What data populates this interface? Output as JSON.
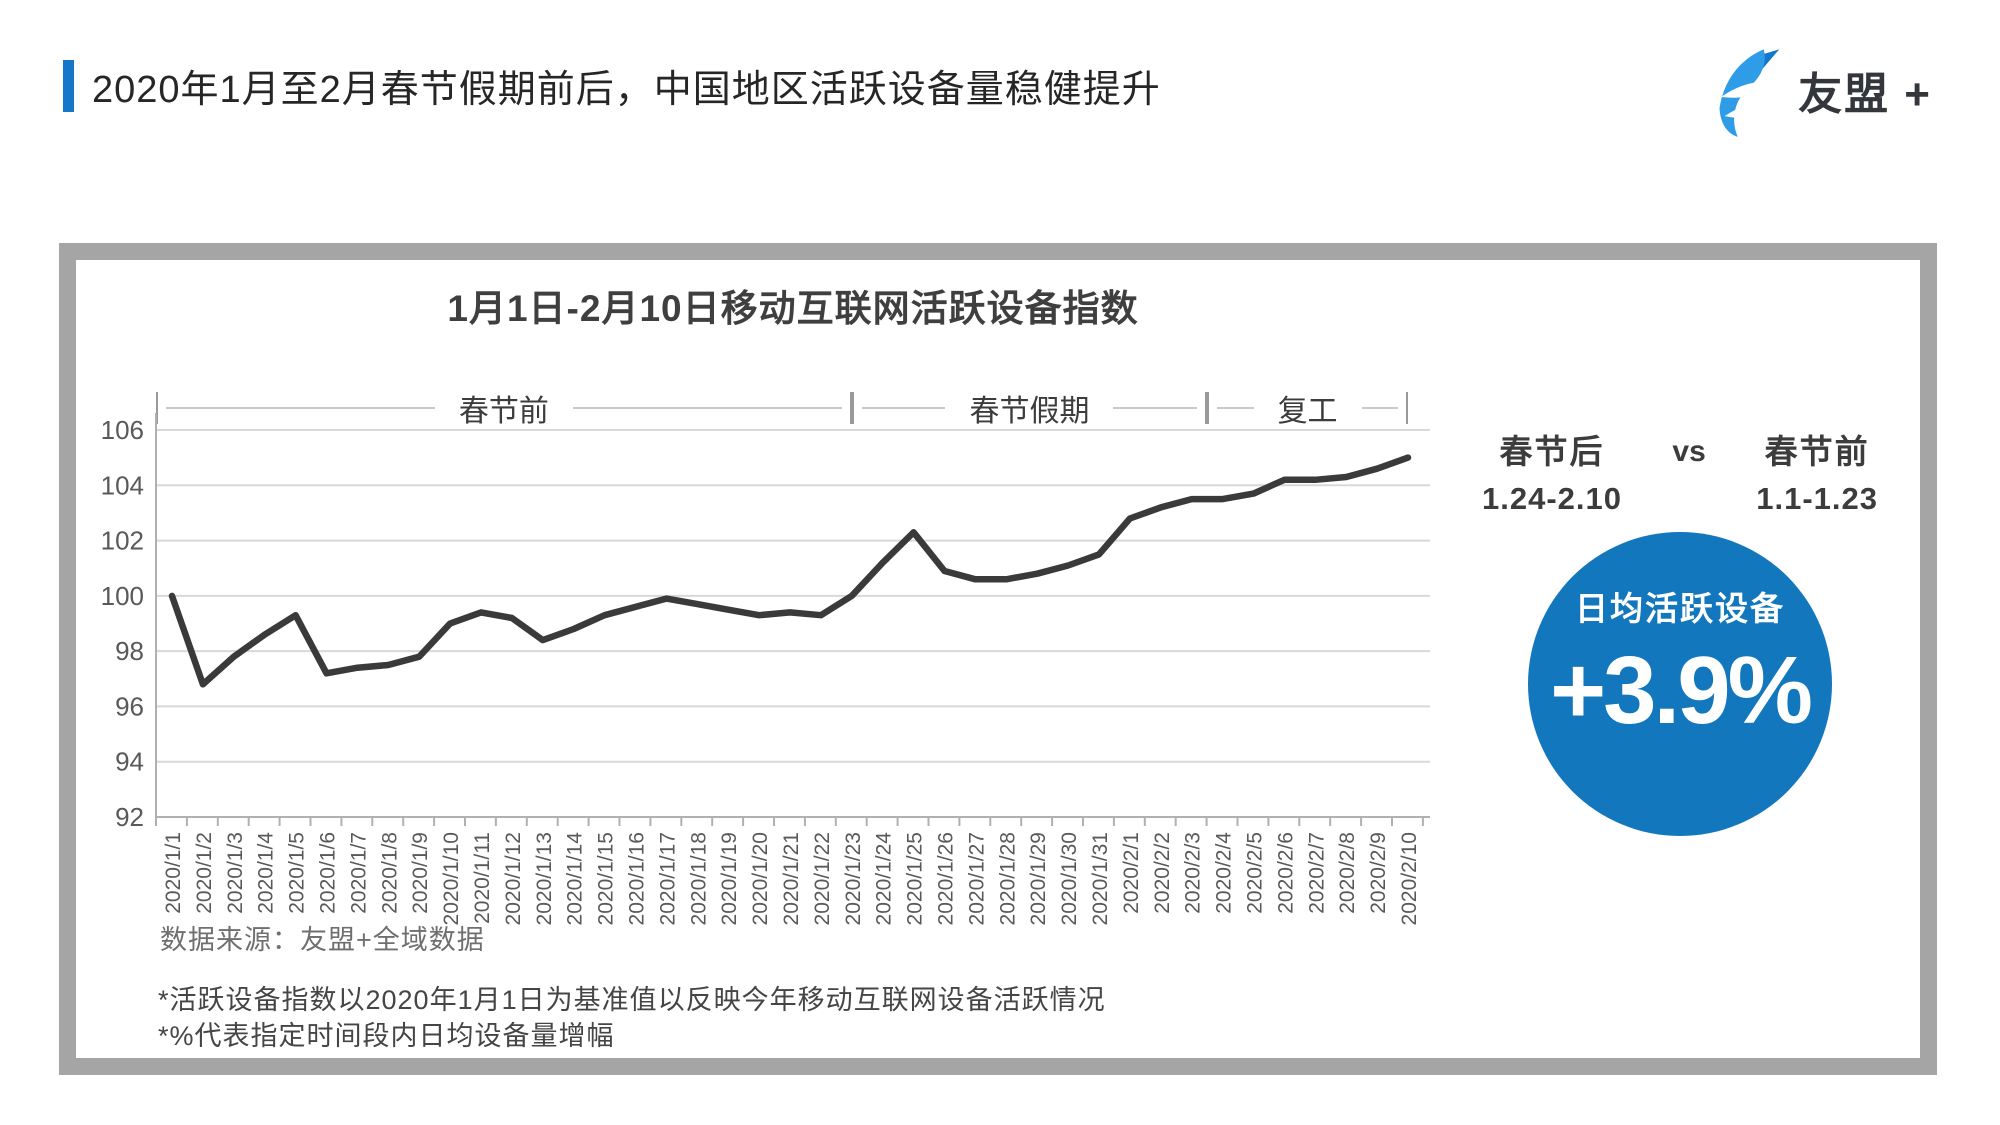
{
  "header": {
    "title": "2020年1月至2月春节假期前后，中国地区活跃设备量稳健提升",
    "logo_text": "友盟 +"
  },
  "card": {
    "chart_title": "1月1日-2月10日移动互联网活跃设备指数",
    "source_note": "数据来源：友盟+全域数据",
    "footnote_1": "*活跃设备指数以2020年1月1日为基准值以反映今年移动互联网设备活跃情况",
    "footnote_2": "*%代表指定时间段内日均设备量增幅"
  },
  "comparison": {
    "after_label": "春节后",
    "after_range": "1.24-2.10",
    "vs_label": "vs",
    "before_label": "春节前",
    "before_range": "1.1-1.23"
  },
  "highlight": {
    "label": "日均活跃设备",
    "value": "+3.9%"
  },
  "colors": {
    "accent_blue": "#1577c8",
    "logo_light_blue": "#2f9ce8",
    "logo_dark_blue": "#1577c8",
    "circle_blue": "#1377be",
    "line_color": "#3a3a3a",
    "grid_color": "#d8d8d8",
    "axis_color": "#b0b0b0",
    "tick_label_color": "#595959"
  },
  "chart_data": {
    "type": "line",
    "title": "1月1日-2月10日移动互联网活跃设备指数",
    "xlabel": "",
    "ylabel": "",
    "ylim": [
      92,
      106
    ],
    "ytick_step": 2,
    "grid": true,
    "legend_position": "none",
    "categories": [
      "2020/1/1",
      "2020/1/2",
      "2020/1/3",
      "2020/1/4",
      "2020/1/5",
      "2020/1/6",
      "2020/1/7",
      "2020/1/8",
      "2020/1/9",
      "2020/1/10",
      "2020/1/11",
      "2020/1/12",
      "2020/1/13",
      "2020/1/14",
      "2020/1/15",
      "2020/1/16",
      "2020/1/17",
      "2020/1/18",
      "2020/1/19",
      "2020/1/20",
      "2020/1/21",
      "2020/1/22",
      "2020/1/23",
      "2020/1/24",
      "2020/1/25",
      "2020/1/26",
      "2020/1/27",
      "2020/1/28",
      "2020/1/29",
      "2020/1/30",
      "2020/1/31",
      "2020/2/1",
      "2020/2/2",
      "2020/2/3",
      "2020/2/4",
      "2020/2/5",
      "2020/2/6",
      "2020/2/7",
      "2020/2/8",
      "2020/2/9",
      "2020/2/10"
    ],
    "values": [
      100.0,
      96.8,
      97.8,
      98.6,
      99.3,
      97.2,
      97.4,
      97.5,
      97.8,
      99.0,
      99.4,
      99.2,
      98.4,
      98.8,
      99.3,
      99.6,
      99.9,
      99.7,
      99.5,
      99.3,
      99.4,
      99.3,
      100.0,
      101.2,
      102.3,
      100.9,
      100.6,
      100.6,
      100.8,
      101.1,
      101.5,
      102.8,
      103.2,
      103.5,
      103.5,
      103.7,
      104.2,
      104.2,
      104.3,
      104.6,
      105.0
    ],
    "sections": [
      {
        "label": "春节前",
        "start_index": -0.5,
        "end_index": 22
      },
      {
        "label": "春节假期",
        "start_index": 22,
        "end_index": 33.5
      },
      {
        "label": "复工",
        "start_index": 33.5,
        "end_index": 40
      }
    ]
  }
}
